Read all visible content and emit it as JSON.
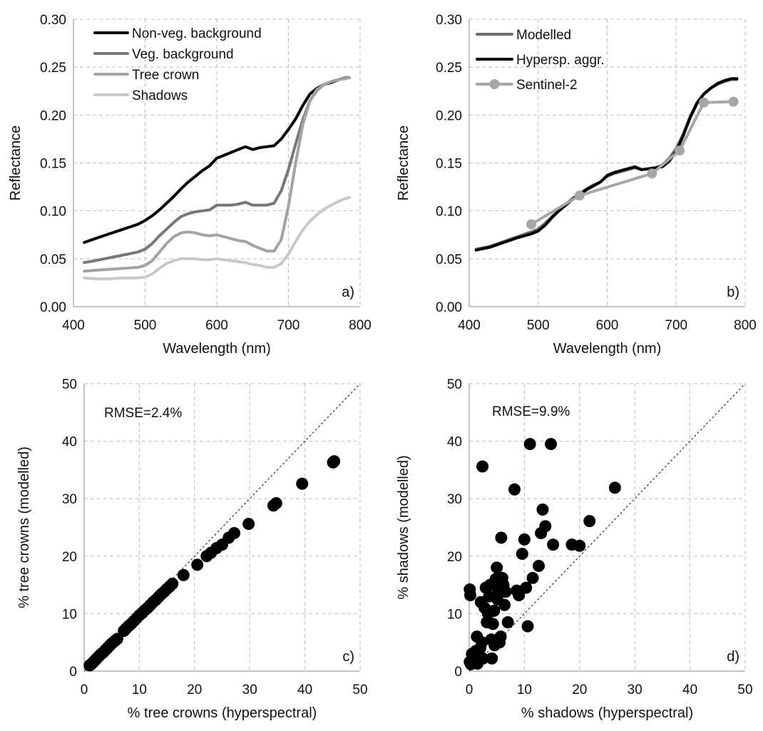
{
  "chart_data": [
    {
      "type": "line",
      "panel_label": "a)",
      "xlabel": "Wavelength (nm)",
      "ylabel": "Reflectance",
      "xlim": [
        400,
        800
      ],
      "ylim": [
        0,
        0.3
      ],
      "xticks": [
        400,
        500,
        600,
        700,
        800
      ],
      "yticks": [
        0,
        0.05,
        0.1,
        0.15,
        0.2,
        0.25,
        0.3
      ],
      "ytick_decimals": 2,
      "grid": true,
      "legend_position": "top-left",
      "series": [
        {
          "name": "Non-veg. background",
          "color": "#000000",
          "x": [
            415,
            430,
            450,
            470,
            490,
            500,
            510,
            520,
            530,
            540,
            550,
            560,
            570,
            580,
            590,
            600,
            610,
            620,
            630,
            640,
            650,
            660,
            670,
            680,
            690,
            700,
            710,
            720,
            730,
            740,
            750,
            760,
            770,
            780,
            785
          ],
          "y": [
            0.067,
            0.071,
            0.076,
            0.081,
            0.086,
            0.09,
            0.095,
            0.101,
            0.108,
            0.115,
            0.123,
            0.13,
            0.136,
            0.142,
            0.147,
            0.155,
            0.158,
            0.161,
            0.164,
            0.167,
            0.164,
            0.166,
            0.167,
            0.168,
            0.175,
            0.185,
            0.196,
            0.21,
            0.222,
            0.228,
            0.232,
            0.234,
            0.237,
            0.239,
            0.239
          ]
        },
        {
          "name": "Veg. background",
          "color": "#777777",
          "x": [
            415,
            430,
            450,
            470,
            490,
            500,
            510,
            520,
            530,
            540,
            550,
            560,
            570,
            580,
            590,
            600,
            610,
            620,
            630,
            640,
            650,
            660,
            670,
            680,
            690,
            700,
            710,
            720,
            730,
            740,
            750,
            760,
            770,
            780,
            785
          ],
          "y": [
            0.046,
            0.048,
            0.051,
            0.054,
            0.057,
            0.06,
            0.066,
            0.074,
            0.081,
            0.088,
            0.094,
            0.097,
            0.099,
            0.1,
            0.101,
            0.106,
            0.106,
            0.106,
            0.107,
            0.109,
            0.106,
            0.106,
            0.106,
            0.108,
            0.121,
            0.143,
            0.17,
            0.195,
            0.215,
            0.226,
            0.232,
            0.235,
            0.237,
            0.239,
            0.239
          ]
        },
        {
          "name": "Tree crown",
          "color": "#a3a3a3",
          "x": [
            415,
            430,
            450,
            470,
            490,
            500,
            510,
            520,
            530,
            540,
            550,
            560,
            570,
            580,
            590,
            600,
            610,
            620,
            630,
            640,
            650,
            660,
            670,
            680,
            690,
            700,
            710,
            720,
            730,
            740,
            750,
            760,
            770,
            780,
            785
          ],
          "y": [
            0.037,
            0.038,
            0.039,
            0.04,
            0.041,
            0.043,
            0.048,
            0.057,
            0.066,
            0.073,
            0.077,
            0.078,
            0.077,
            0.075,
            0.074,
            0.075,
            0.073,
            0.071,
            0.069,
            0.068,
            0.064,
            0.061,
            0.058,
            0.058,
            0.07,
            0.105,
            0.15,
            0.19,
            0.215,
            0.227,
            0.232,
            0.235,
            0.237,
            0.238,
            0.239
          ]
        },
        {
          "name": "Shadows",
          "color": "#c8c8c8",
          "x": [
            415,
            430,
            450,
            470,
            490,
            500,
            510,
            520,
            530,
            540,
            550,
            560,
            570,
            580,
            590,
            600,
            610,
            620,
            630,
            640,
            650,
            660,
            670,
            680,
            690,
            700,
            710,
            720,
            730,
            740,
            750,
            760,
            770,
            780,
            785
          ],
          "y": [
            0.03,
            0.029,
            0.029,
            0.03,
            0.03,
            0.031,
            0.034,
            0.04,
            0.045,
            0.048,
            0.05,
            0.05,
            0.05,
            0.049,
            0.049,
            0.05,
            0.049,
            0.048,
            0.047,
            0.046,
            0.044,
            0.043,
            0.041,
            0.041,
            0.045,
            0.055,
            0.068,
            0.08,
            0.089,
            0.096,
            0.102,
            0.106,
            0.11,
            0.113,
            0.114
          ]
        }
      ]
    },
    {
      "type": "line",
      "panel_label": "b)",
      "xlabel": "Wavelength (nm)",
      "ylabel": "Reflectance",
      "xlim": [
        400,
        800
      ],
      "ylim": [
        0,
        0.3
      ],
      "xticks": [
        400,
        500,
        600,
        700,
        800
      ],
      "yticks": [
        0,
        0.05,
        0.1,
        0.15,
        0.2,
        0.25,
        0.3
      ],
      "ytick_decimals": 2,
      "grid": true,
      "legend_position": "top-left",
      "series": [
        {
          "name": "Modelled",
          "color": "#6e6e6e",
          "x": [
            410,
            430,
            450,
            470,
            490,
            500,
            510,
            520,
            530,
            540,
            550,
            560,
            570,
            580,
            590,
            600,
            610,
            620,
            630,
            640,
            650,
            660,
            670,
            680,
            690,
            700,
            710,
            720,
            730,
            740,
            750,
            760,
            770,
            780,
            788
          ],
          "y": [
            0.06,
            0.063,
            0.068,
            0.073,
            0.078,
            0.081,
            0.087,
            0.094,
            0.101,
            0.107,
            0.113,
            0.118,
            0.123,
            0.127,
            0.13,
            0.136,
            0.139,
            0.141,
            0.143,
            0.145,
            0.143,
            0.144,
            0.145,
            0.148,
            0.155,
            0.165,
            0.18,
            0.198,
            0.213,
            0.222,
            0.228,
            0.232,
            0.235,
            0.237,
            0.237
          ]
        },
        {
          "name": "Hypersp. aggr.",
          "color": "#000000",
          "x": [
            410,
            430,
            450,
            470,
            490,
            500,
            510,
            520,
            530,
            540,
            550,
            560,
            570,
            580,
            590,
            600,
            610,
            620,
            630,
            640,
            650,
            660,
            670,
            680,
            690,
            700,
            710,
            720,
            730,
            740,
            750,
            760,
            770,
            780,
            788
          ],
          "y": [
            0.059,
            0.062,
            0.067,
            0.072,
            0.076,
            0.079,
            0.085,
            0.093,
            0.1,
            0.106,
            0.112,
            0.117,
            0.122,
            0.126,
            0.13,
            0.137,
            0.14,
            0.142,
            0.144,
            0.146,
            0.143,
            0.144,
            0.145,
            0.146,
            0.152,
            0.162,
            0.178,
            0.197,
            0.212,
            0.222,
            0.228,
            0.233,
            0.236,
            0.238,
            0.238
          ]
        },
        {
          "name": "Sentinel-2",
          "color": "#a6a6a6",
          "markers": true,
          "x": [
            490,
            560,
            665,
            705,
            740,
            783
          ],
          "y": [
            0.086,
            0.116,
            0.139,
            0.163,
            0.213,
            0.214
          ]
        }
      ]
    },
    {
      "type": "scatter",
      "panel_label": "c)",
      "annotation": "RMSE=2.4%",
      "xlabel": "% tree crowns (hyperspectral)",
      "ylabel": "% tree crowns (modelled)",
      "xlim": [
        0,
        50
      ],
      "ylim": [
        0,
        50
      ],
      "xticks": [
        0,
        10,
        20,
        30,
        40,
        50
      ],
      "yticks": [
        0,
        10,
        20,
        30,
        40,
        50
      ],
      "ytick_decimals": 0,
      "grid": true,
      "identity_line": true,
      "series": [
        {
          "color": "#000000",
          "x": [
            1,
            1.3,
            1.6,
            2,
            2.3,
            2.7,
            3,
            3.4,
            3.8,
            4.2,
            4.6,
            5,
            5.5,
            6,
            7.2,
            7.6,
            8,
            8.5,
            9,
            9.5,
            10,
            10.5,
            11,
            11.5,
            12,
            12.5,
            13,
            13.5,
            14,
            14.5,
            15,
            15.5,
            16,
            18,
            20.5,
            22.2,
            23,
            24,
            25,
            26.2,
            27.2,
            29.8,
            34.3,
            34.8,
            39.5,
            45.1,
            45.3
          ],
          "y": [
            1,
            1.2,
            1.5,
            1.9,
            2.2,
            2.6,
            2.9,
            3.2,
            3.6,
            4,
            4.4,
            4.8,
            5.2,
            5.6,
            7,
            7.4,
            7.8,
            8.2,
            8.7,
            9.2,
            9.7,
            10.1,
            10.6,
            11,
            11.5,
            12,
            12.4,
            12.9,
            13.4,
            13.8,
            14.3,
            14.7,
            15.2,
            16.7,
            18.5,
            20,
            20.6,
            21.4,
            22,
            23.2,
            24,
            25.6,
            28.8,
            29.2,
            32.6,
            36.3,
            36.5
          ]
        }
      ]
    },
    {
      "type": "scatter",
      "panel_label": "d)",
      "annotation": "RMSE=9.9%",
      "xlabel": "% shadows (hyperspectral)",
      "ylabel": "% shadows (modelled)",
      "xlim": [
        0,
        50
      ],
      "ylim": [
        0,
        50
      ],
      "xticks": [
        0,
        10,
        20,
        30,
        40,
        50
      ],
      "yticks": [
        0,
        10,
        20,
        30,
        40,
        50
      ],
      "ytick_decimals": 0,
      "grid": true,
      "identity_line": true,
      "series": [
        {
          "color": "#000000",
          "x": [
            0.1,
            0.2,
            0.3,
            0.5,
            0.6,
            0.8,
            1,
            1.2,
            1.4,
            1.5,
            1.8,
            2,
            2.1,
            2.3,
            2.5,
            2.8,
            3,
            3.2,
            3.4,
            3.6,
            3.8,
            4,
            4.1,
            4.3,
            4.5,
            4.6,
            4.8,
            5,
            5.1,
            5.3,
            5.5,
            5.7,
            5.8,
            6,
            6.2,
            6.4,
            6.6,
            7,
            8.2,
            8.6,
            9,
            9.6,
            10,
            10.3,
            10.6,
            11,
            11.5,
            12.6,
            13,
            13.3,
            13.8,
            14.8,
            15.2,
            18.6,
            20,
            21.8,
            26.4,
            0.1,
            1.8,
            2.4
          ],
          "y": [
            14.2,
            13.2,
            1.2,
            3,
            1.7,
            2,
            2.5,
            3.5,
            6,
            1.3,
            2,
            4,
            12,
            5,
            2.2,
            11,
            14.5,
            8.5,
            10,
            13,
            15,
            5.5,
            2.2,
            8.2,
            10.5,
            4.5,
            16,
            18,
            12.5,
            14,
            5,
            6,
            23.2,
            16.2,
            15,
            11.5,
            13.8,
            8.5,
            31.6,
            14,
            13.2,
            20.4,
            22.9,
            14.5,
            7.8,
            39.5,
            16.2,
            18.3,
            24,
            28.1,
            25.2,
            39.5,
            22,
            22,
            21.8,
            26.1,
            31.9,
            1.6,
            2.6,
            35.6
          ]
        }
      ]
    }
  ]
}
